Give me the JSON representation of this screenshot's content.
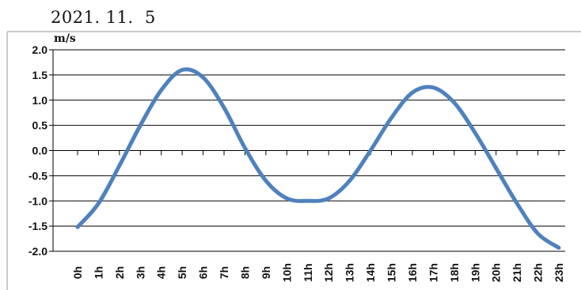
{
  "date_text": "2021. 11.  5",
  "chart_data": {
    "type": "line",
    "ylabel": "m/s",
    "ylim": [
      -2.0,
      2.0
    ],
    "yticks": [
      "2.0",
      "1.5",
      "1.0",
      "0.5",
      "0.0",
      "-0.5",
      "-1.0",
      "-1.5",
      "-2.0"
    ],
    "categories": [
      "0h",
      "1h",
      "2h",
      "3h",
      "4h",
      "5h",
      "6h",
      "7h",
      "8h",
      "9h",
      "10h",
      "11h",
      "12h",
      "13h",
      "14h",
      "15h",
      "16h",
      "17h",
      "18h",
      "19h",
      "20h",
      "21h",
      "22h",
      "23h"
    ],
    "values": [
      -1.52,
      -1.05,
      -0.3,
      0.5,
      1.2,
      1.6,
      1.45,
      0.85,
      0.05,
      -0.6,
      -0.95,
      -1.0,
      -0.95,
      -0.6,
      0.0,
      0.65,
      1.15,
      1.25,
      0.95,
      0.35,
      -0.35,
      -1.05,
      -1.65,
      -1.93
    ],
    "grid": true,
    "line_color": "#4F81BD"
  }
}
